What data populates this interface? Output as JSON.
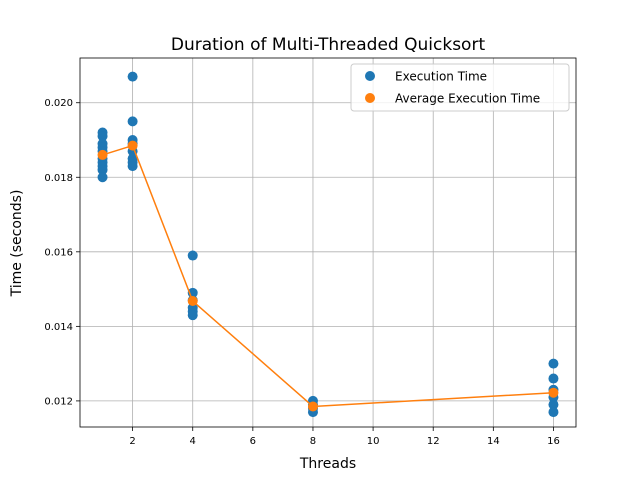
{
  "chart_data": {
    "type": "scatter",
    "title": "Duration of Multi-Threaded Quicksort",
    "xlabel": "Threads",
    "ylabel": "Time (seconds)",
    "xlim": [
      0.25,
      16.75
    ],
    "ylim": [
      0.0113,
      0.0212
    ],
    "xticks": [
      2,
      4,
      6,
      8,
      10,
      12,
      14,
      16
    ],
    "xtick_labels": [
      "2",
      "4",
      "6",
      "8",
      "10",
      "12",
      "14",
      "16"
    ],
    "yticks": [
      0.012,
      0.014,
      0.016,
      0.018,
      0.02
    ],
    "ytick_labels": [
      "0.012",
      "0.014",
      "0.016",
      "0.018",
      "0.020"
    ],
    "grid": true,
    "legend_position": "top-right",
    "series": [
      {
        "name": "Execution Time",
        "kind": "scatter",
        "color": "#1f77b4",
        "points": [
          [
            1,
            0.0192
          ],
          [
            1,
            0.0191
          ],
          [
            1,
            0.0189
          ],
          [
            1,
            0.0188
          ],
          [
            1,
            0.0187
          ],
          [
            1,
            0.0185
          ],
          [
            1,
            0.0184
          ],
          [
            1,
            0.0183
          ],
          [
            1,
            0.0182
          ],
          [
            1,
            0.018
          ],
          [
            2,
            0.0207
          ],
          [
            2,
            0.0195
          ],
          [
            2,
            0.019
          ],
          [
            2,
            0.0189
          ],
          [
            2,
            0.0187
          ],
          [
            2,
            0.0185
          ],
          [
            2,
            0.0184
          ],
          [
            2,
            0.0183
          ],
          [
            4,
            0.0159
          ],
          [
            4,
            0.0149
          ],
          [
            4,
            0.0147
          ],
          [
            4,
            0.0145
          ],
          [
            4,
            0.0144
          ],
          [
            4,
            0.0143
          ],
          [
            8,
            0.012
          ],
          [
            8,
            0.0119
          ],
          [
            8,
            0.0118
          ],
          [
            8,
            0.0117
          ],
          [
            16,
            0.013
          ],
          [
            16,
            0.0126
          ],
          [
            16,
            0.0123
          ],
          [
            16,
            0.0121
          ],
          [
            16,
            0.0119
          ],
          [
            16,
            0.0117
          ]
        ]
      },
      {
        "name": "Average Execution Time",
        "kind": "line",
        "color": "#ff7f0e",
        "x": [
          1,
          2,
          4,
          8,
          16
        ],
        "y": [
          0.0186,
          0.01885,
          0.01468,
          0.01185,
          0.01222
        ]
      }
    ]
  }
}
